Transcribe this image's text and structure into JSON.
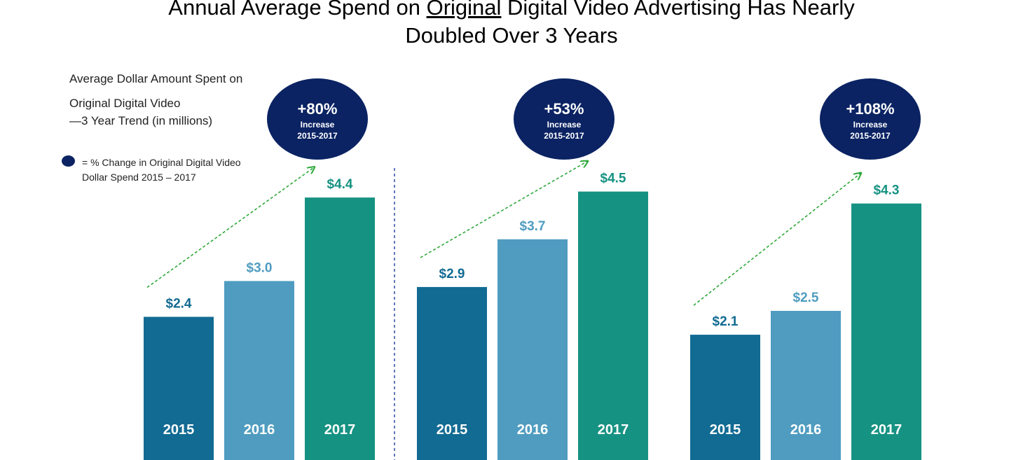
{
  "title": {
    "part1": "Annual Average Spend on ",
    "underlined": "Original",
    "part2": " Digital Video Advertising Has Nearly",
    "line2": "Doubled Over 3 Years"
  },
  "ylabel": {
    "line1": "Average Dollar Amount Spent on",
    "line2": "Original Digital Video",
    "line3": "—3 Year Trend  (in millions)"
  },
  "legend": {
    "text": "= % Change in Original Digital Video Dollar Spend  2015 – 2017"
  },
  "colors": {
    "2015": "#126b93",
    "2016": "#4f9cc0",
    "2017": "#169282",
    "badge": "#0b2363",
    "arrow": "#2ea83a",
    "divider": "#2b4aa0"
  },
  "chart_data": [
    {
      "type": "bar",
      "categories": [
        "2015",
        "2016",
        "2017"
      ],
      "values": [
        2.4,
        3.0,
        4.4
      ],
      "value_labels": [
        "$2.4",
        "$3.0",
        "$4.4"
      ],
      "change_pct": "+80%",
      "change_label": "Increase",
      "change_period": "2015-2017"
    },
    {
      "type": "bar",
      "categories": [
        "2015",
        "2016",
        "2017"
      ],
      "values": [
        2.9,
        3.7,
        4.5
      ],
      "value_labels": [
        "$2.9",
        "$3.7",
        "$4.5"
      ],
      "change_pct": "+53%",
      "change_label": "Increase",
      "change_period": "2015-2017"
    },
    {
      "type": "bar",
      "categories": [
        "2015",
        "2016",
        "2017"
      ],
      "values": [
        2.1,
        2.5,
        4.3
      ],
      "value_labels": [
        "$2.1",
        "$2.5",
        "$4.3"
      ],
      "change_pct": "+108%",
      "change_label": "Increase",
      "change_period": "2015-2017"
    }
  ]
}
